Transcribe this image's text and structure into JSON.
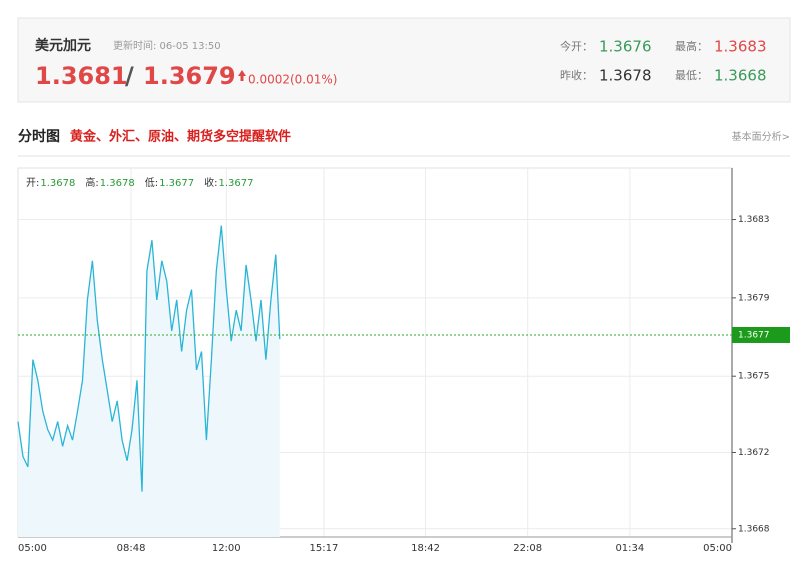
{
  "header": {
    "title": "美元加元",
    "update_time": "更新时间: 06-05 13:50",
    "bid": "1.3681",
    "separator": "/",
    "ask": "1.3679",
    "change": "0.0002(0.01%)",
    "stats": [
      {
        "label": "今开：",
        "value": "1.3676",
        "color": "#3a9a5a"
      },
      {
        "label": "最高：",
        "value": "1.3683",
        "color": "#e04848"
      },
      {
        "label": "昨收：",
        "value": "1.3678",
        "color": "#333333"
      },
      {
        "label": "最低：",
        "value": "1.3668",
        "color": "#3a9a5a"
      }
    ]
  },
  "section": {
    "title": "分时图",
    "promo": "黄金、外汇、原油、期货多空提醒软件",
    "link": "基本面分析>"
  },
  "chart_data": {
    "type": "line",
    "ohlc": [
      {
        "label": "开:",
        "value": "1.3678"
      },
      {
        "label": "高:",
        "value": "1.3678"
      },
      {
        "label": "低:",
        "value": "1.3677"
      },
      {
        "label": "收:",
        "value": "1.3677"
      }
    ],
    "x": [
      "05:00",
      "05:10",
      "05:20",
      "05:30",
      "05:40",
      "05:50",
      "06:00",
      "06:10",
      "06:20",
      "06:30",
      "06:40",
      "06:50",
      "07:00",
      "07:10",
      "07:20",
      "07:30",
      "07:40",
      "07:50",
      "08:00",
      "08:10",
      "08:20",
      "08:30",
      "08:40",
      "08:50",
      "09:00",
      "09:10",
      "09:20",
      "09:30",
      "09:40",
      "09:50",
      "10:00",
      "10:10",
      "10:20",
      "10:30",
      "10:40",
      "10:50",
      "11:00",
      "11:10",
      "11:20",
      "11:30",
      "11:40",
      "11:50",
      "12:00",
      "12:10",
      "12:20",
      "12:30",
      "12:40",
      "12:50",
      "13:00",
      "13:10",
      "13:20",
      "13:30",
      "13:40",
      "13:48"
    ],
    "series": [
      {
        "color": "#2ab5d6",
        "values": [
          1.36732,
          1.36715,
          1.3671,
          1.36762,
          1.36752,
          1.36737,
          1.36728,
          1.36723,
          1.36732,
          1.3672,
          1.3673,
          1.36723,
          1.36737,
          1.36752,
          1.36791,
          1.3681,
          1.36781,
          1.36762,
          1.36747,
          1.36732,
          1.36742,
          1.36723,
          1.36713,
          1.36728,
          1.36752,
          1.36698,
          1.36805,
          1.3682,
          1.36791,
          1.3681,
          1.368,
          1.36776,
          1.36791,
          1.36766,
          1.36786,
          1.36796,
          1.36757,
          1.36766,
          1.36723,
          1.36762,
          1.36805,
          1.36827,
          1.36796,
          1.36771,
          1.36786,
          1.36776,
          1.36808,
          1.36791,
          1.36771,
          1.36791,
          1.36762,
          1.36791,
          1.36813,
          1.36772
        ]
      }
    ],
    "ylim": [
      1.36676,
      1.36855
    ],
    "yticks": [
      1.3683,
      {
        "value": 1.36792,
        "label": "1.3679"
      },
      {
        "value": 1.36754,
        "label": "1.3675"
      },
      {
        "value": 1.36717,
        "label": "1.3672"
      },
      1.3668
    ],
    "xticks": [
      "05:00",
      "08:48",
      "12:00",
      "15:17",
      "18:42",
      "22:08",
      "01:34",
      "05:00"
    ],
    "current_price": {
      "value": 1.36774,
      "label": "1.3677"
    },
    "grid": true
  }
}
